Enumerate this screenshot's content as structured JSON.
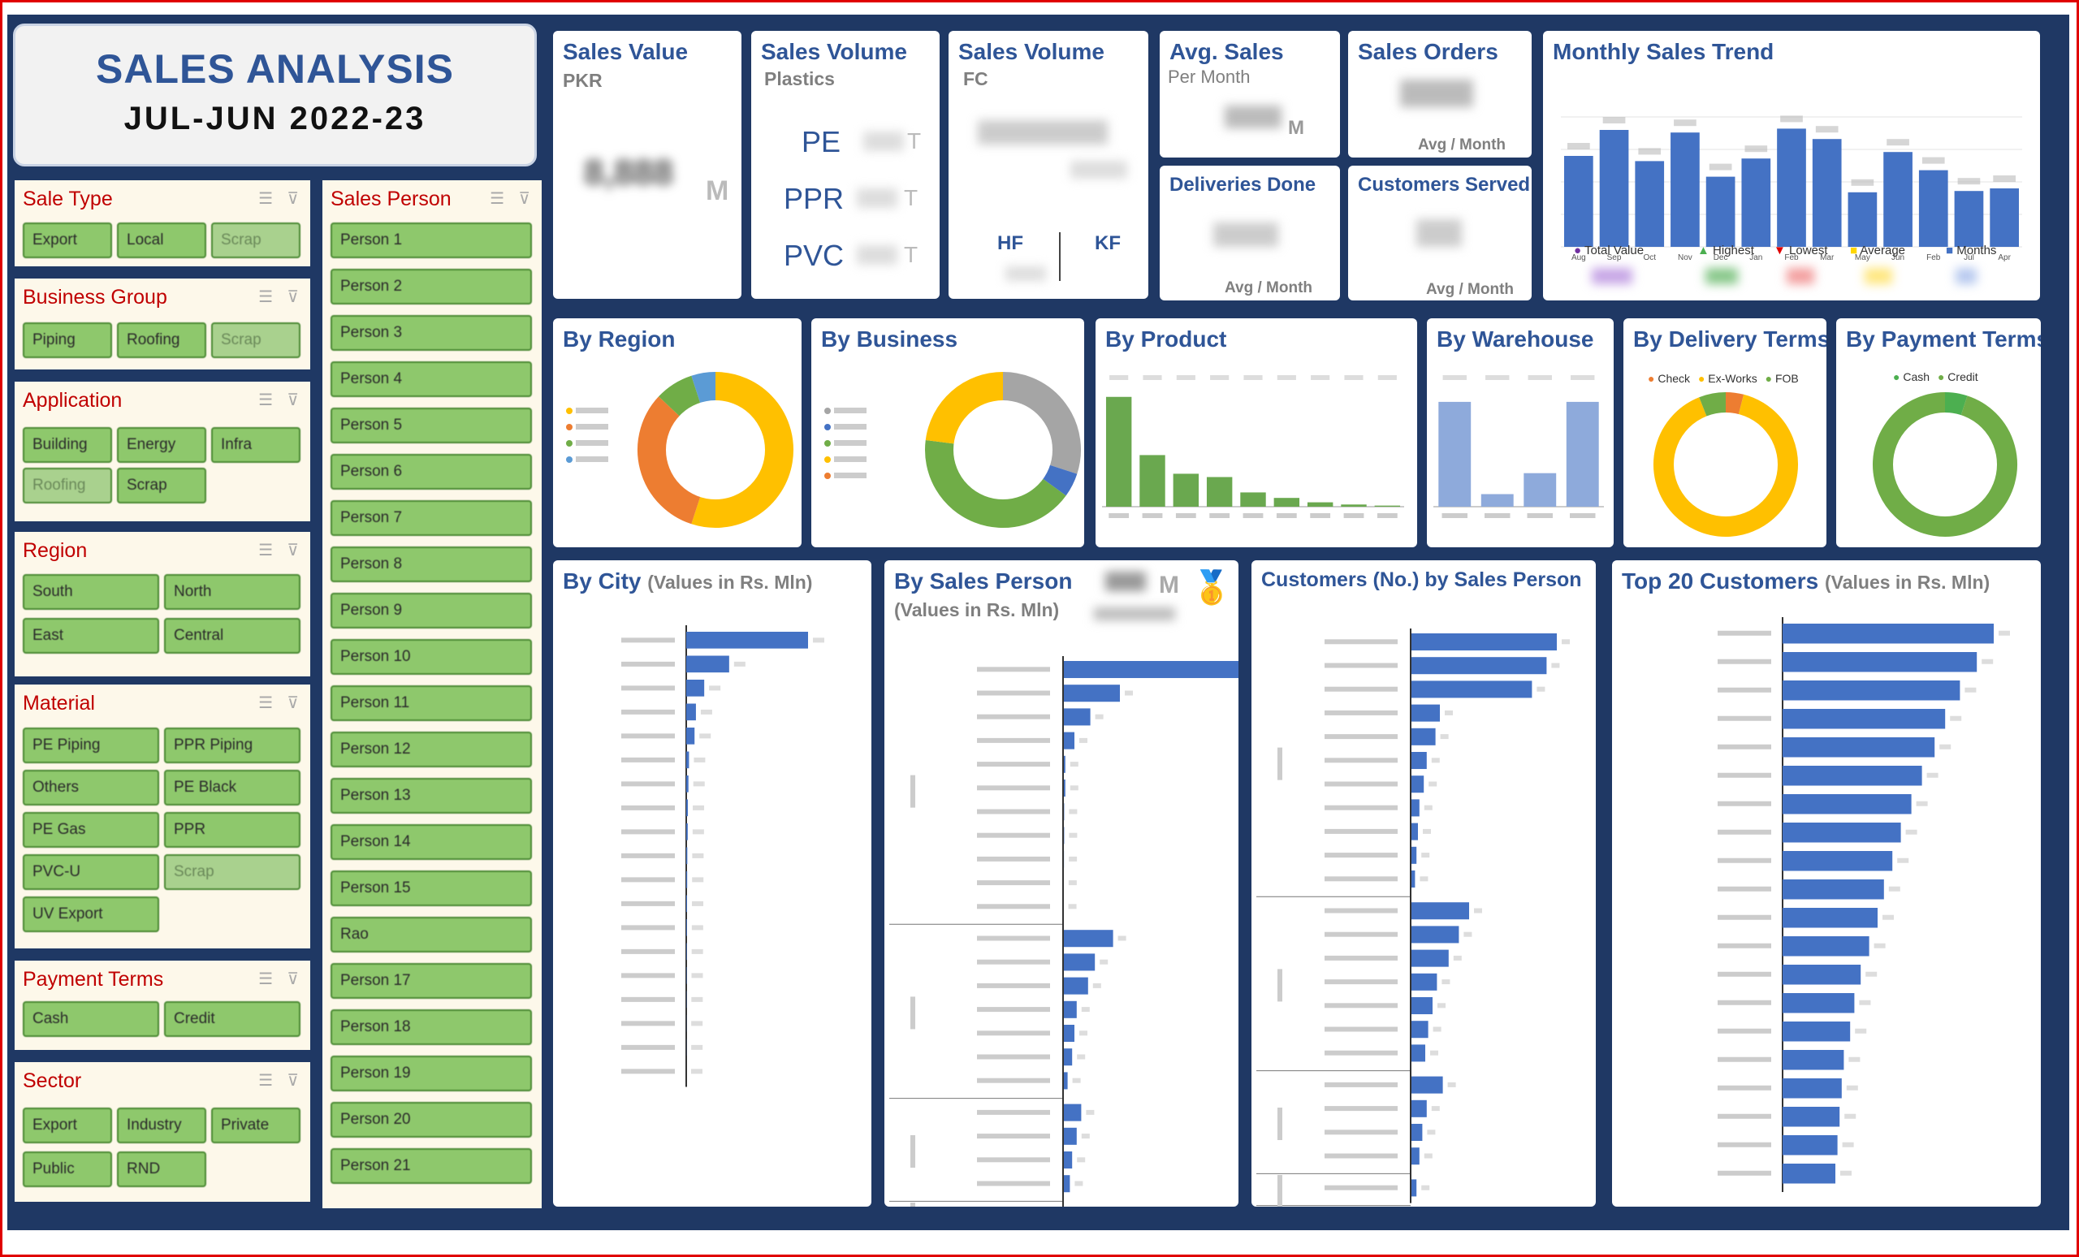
{
  "header": {
    "title": "SALES ANALYSIS",
    "period": "JUL-JUN 2022-23"
  },
  "slicers": {
    "sale_type": {
      "title": "Sale Type",
      "items": [
        "Export",
        "Local",
        "Scrap"
      ]
    },
    "business_group": {
      "title": "Business Group",
      "items": [
        "Piping",
        "Roofing",
        "Scrap"
      ]
    },
    "application": {
      "title": "Application",
      "items": [
        "Building",
        "Energy",
        "Infra",
        "Roofing",
        "Scrap"
      ]
    },
    "region": {
      "title": "Region",
      "items": [
        "South",
        "North",
        "East",
        "Central"
      ]
    },
    "material": {
      "title": "Material",
      "items": [
        "PE Piping",
        "PPR Piping",
        "Others",
        "PE Black",
        "PE Gas",
        "PPR",
        "PVC-U",
        "Scrap",
        "UV Export"
      ]
    },
    "payment_terms": {
      "title": "Payment Terms",
      "items": [
        "Cash",
        "Credit"
      ]
    },
    "sector": {
      "title": "Sector",
      "items": [
        "Export",
        "Industry",
        "Private",
        "Public",
        "RND"
      ]
    },
    "sales_person": {
      "title": "Sales Person",
      "items": [
        "Person 1",
        "Person 2",
        "Person 3",
        "Person 4",
        "Person 5",
        "Person 6",
        "Person 7",
        "Person 8",
        "Person 9",
        "Person 10",
        "Person 11",
        "Person 12",
        "Person 13",
        "Person 14",
        "Person 15",
        "Rao",
        "Person 17",
        "Person 18",
        "Person 19",
        "Person 20",
        "Person 21"
      ]
    }
  },
  "kpis": {
    "sales_value": {
      "title": "Sales Value",
      "sub": "PKR",
      "value": "8,888",
      "unit": "M"
    },
    "volume_plastics": {
      "title": "Sales Volume",
      "sub": "Plastics",
      "rows": [
        {
          "label": "PE",
          "unit": "T"
        },
        {
          "label": "PPR",
          "unit": "T"
        },
        {
          "label": "PVC",
          "unit": "T"
        }
      ]
    },
    "volume_fc": {
      "title": "Sales Volume",
      "sub": "FC",
      "hf": "HF",
      "kf": "KF"
    },
    "avg_sales": {
      "title": "Avg. Sales",
      "sub": "Per Month",
      "unit": "M"
    },
    "sales_orders": {
      "title": "Sales Orders",
      "note": "Avg / Month"
    },
    "deliveries": {
      "title": "Deliveries Done",
      "note": "Avg / Month"
    },
    "customers": {
      "title": "Customers Served",
      "note": "Avg / Month"
    }
  },
  "trend": {
    "title": "Monthly Sales Trend",
    "legend": {
      "total": "Total Value",
      "highest": "Highest",
      "lowest": "Lowest",
      "average": "Average",
      "months": "Months"
    },
    "legend_unit": "M"
  },
  "charts": {
    "region": {
      "title": "By Region"
    },
    "business": {
      "title": "By Business"
    },
    "product": {
      "title": "By Product"
    },
    "warehouse": {
      "title": "By Warehouse"
    },
    "delivery": {
      "title": "By Delivery Terms",
      "legend": [
        "Check",
        "Ex-Works",
        "FOB"
      ]
    },
    "payment": {
      "title": "By Payment Terms",
      "legend": [
        "Cash",
        "Credit"
      ]
    },
    "city": {
      "title": "By City",
      "sub": "(Values in Rs. Mln)"
    },
    "sales_person": {
      "title": "By Sales Person",
      "sub": "(Values in Rs. Mln)",
      "unit": "M"
    },
    "cust_by_sp": {
      "title": "Customers (No.) by Sales Person"
    },
    "top20": {
      "title": "Top 20 Customers",
      "sub": "(Values in Rs. Mln)"
    }
  },
  "chart_data": [
    {
      "type": "bar",
      "title": "Monthly Sales Trend",
      "categories": [
        "Aug",
        "Sep",
        "Oct",
        "Nov",
        "Dec",
        "Jan",
        "Feb",
        "Mar",
        "May",
        "Jun",
        "Feb",
        "Jul",
        "Apr"
      ],
      "values": [
        7,
        9,
        6.6,
        8.8,
        5.4,
        6.8,
        9.1,
        8.3,
        4.2,
        7.3,
        5.9,
        4.3,
        4.5
      ],
      "ylim": [
        0,
        10
      ],
      "data_labels_illegible": true,
      "grid": true
    },
    {
      "type": "pie",
      "title": "By Region",
      "categories": [
        "South",
        "Central",
        "North",
        "East"
      ],
      "values": [
        55,
        32,
        8,
        5
      ],
      "colors": [
        "#ffc000",
        "#ed7d31",
        "#70ad47",
        "#5b9bd5"
      ]
    },
    {
      "type": "pie",
      "title": "By Business",
      "categories": [
        "Roofing",
        "Piping",
        "Infra",
        "Building",
        "Scrap"
      ],
      "values": [
        30,
        5,
        42,
        23,
        0
      ],
      "colors": [
        "#a5a5a5",
        "#4472c4",
        "#70ad47",
        "#ffc000",
        "#ed7d31"
      ]
    },
    {
      "type": "bar",
      "title": "By Product",
      "values": [
        100,
        47,
        30,
        27,
        13,
        8,
        4,
        2,
        1
      ],
      "ylim": [
        0,
        105
      ]
    },
    {
      "type": "bar",
      "title": "By Warehouse",
      "values": [
        100,
        12,
        32,
        100
      ],
      "ylim": [
        0,
        110
      ]
    },
    {
      "type": "pie",
      "title": "By Delivery Terms",
      "categories": [
        "Check",
        "Ex-Works",
        "FOB"
      ],
      "values": [
        4,
        90,
        6
      ],
      "colors": [
        "#ed7d31",
        "#ffc000",
        "#70ad47"
      ]
    },
    {
      "type": "pie",
      "title": "By Payment Terms",
      "categories": [
        "Cash",
        "Credit"
      ],
      "values": [
        5,
        95
      ],
      "colors": [
        "#4caf50",
        "#70ad47"
      ]
    },
    {
      "type": "bar",
      "orientation": "horizontal",
      "title": "By City",
      "values": [
        88,
        31,
        13,
        7,
        6,
        2,
        1.6,
        1.2,
        1.1,
        0.8,
        0.7,
        0.6,
        0.5,
        0.4,
        0.3,
        0.2,
        0.1,
        0.1,
        0
      ]
    },
    {
      "type": "bar",
      "orientation": "horizontal",
      "title": "By Sales Person",
      "groups": [
        {
          "values": [
            100,
            25,
            12,
            5,
            1,
            1,
            0.5,
            0.5,
            0.4,
            0.3,
            0.2
          ]
        },
        {
          "values": [
            22,
            14,
            11,
            6,
            5,
            4,
            2
          ]
        },
        {
          "values": [
            8,
            6,
            4,
            3
          ]
        },
        {
          "values": [
            14
          ]
        }
      ]
    },
    {
      "type": "bar",
      "orientation": "horizontal",
      "title": "Customers (No.) by Sales Person",
      "groups": [
        {
          "values": [
            100,
            93,
            83,
            20,
            17,
            11,
            9,
            6,
            5,
            4,
            3
          ]
        },
        {
          "values": [
            40,
            33,
            26,
            18,
            15,
            12,
            10
          ]
        },
        {
          "values": [
            22,
            11,
            8,
            6
          ]
        },
        {
          "values": [
            4
          ]
        }
      ]
    },
    {
      "type": "bar",
      "orientation": "horizontal",
      "title": "Top 20 Customers",
      "values": [
        100,
        92,
        84,
        77,
        72,
        66,
        61,
        56,
        52,
        48,
        45,
        41,
        37,
        34,
        32,
        29,
        28,
        27,
        26,
        25
      ]
    }
  ]
}
